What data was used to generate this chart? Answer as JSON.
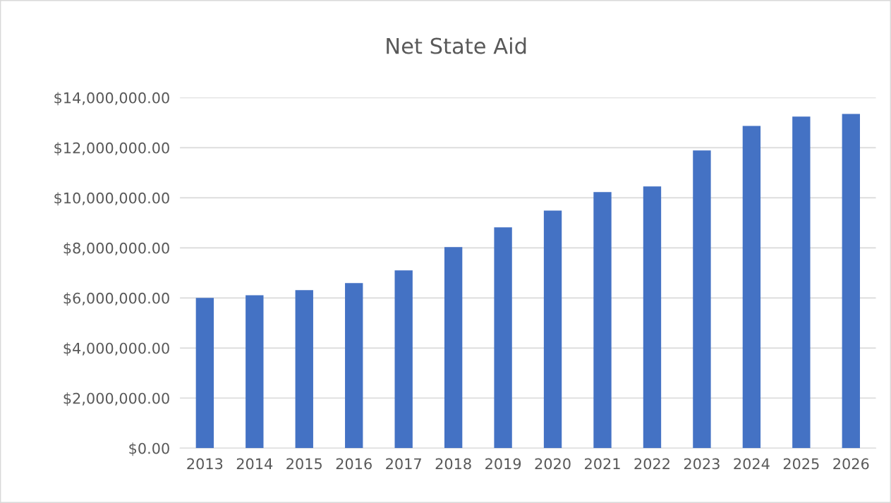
{
  "chart_data": {
    "type": "bar",
    "title": "Net State Aid",
    "categories": [
      "2013",
      "2014",
      "2015",
      "2016",
      "2017",
      "2018",
      "2019",
      "2020",
      "2021",
      "2022",
      "2023",
      "2024",
      "2025",
      "2026"
    ],
    "values": [
      6000000,
      6110000,
      6310000,
      6590000,
      7100000,
      8030000,
      8820000,
      9490000,
      10230000,
      10450000,
      11890000,
      12870000,
      13240000,
      13350000
    ],
    "color": "#4472c4",
    "ylim": [
      0,
      14000000
    ],
    "yticks": [
      {
        "value": 0,
        "label": "$0.00"
      },
      {
        "value": 2000000,
        "label": "$2,000,000.00"
      },
      {
        "value": 4000000,
        "label": "$4,000,000.00"
      },
      {
        "value": 6000000,
        "label": "$6,000,000.00"
      },
      {
        "value": 8000000,
        "label": "$8,000,000.00"
      },
      {
        "value": 10000000,
        "label": "$10,000,000.00"
      },
      {
        "value": 12000000,
        "label": "$12,000,000.00"
      },
      {
        "value": 14000000,
        "label": "$14,000,000.00"
      }
    ],
    "grid": "y",
    "legend": false
  }
}
